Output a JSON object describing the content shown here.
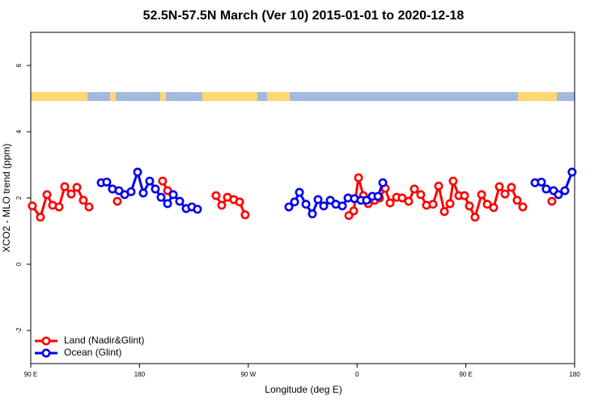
{
  "chart_data": {
    "type": "line",
    "title": "52.5N-57.5N March (Ver 10)   2015-01-01 to 2020-12-18",
    "x_label": "Longitude (deg E)",
    "y_label": "XCO2 - MLO trend (ppm)",
    "xlim": [
      90,
      540
    ],
    "ylim": [
      -3,
      7
    ],
    "xticks": [
      {
        "value": 90,
        "label": "90 E"
      },
      180,
      {
        "value": 270,
        "label": "90 W"
      },
      {
        "value": 360,
        "label": "0"
      },
      {
        "value": 450,
        "label": "90 E"
      },
      {
        "value": 540,
        "label": "180"
      }
    ],
    "yticks": [
      -2,
      0,
      2,
      4,
      6
    ],
    "legend": "bottom-left",
    "series": [
      {
        "name": "Land (Nadir&Glint)",
        "color": "#ff0000",
        "x": [
          91.3,
          98.0,
          103.4,
          108.1,
          113.4,
          118.1,
          123.5,
          128.2,
          133.5,
          138.2,
          null,
          161.6,
          null,
          199.1,
          203.2,
          null,
          243.3,
          248.0,
          252.7,
          258.0,
          262.8,
          267.4,
          null,
          353.2,
          357.2,
          361.2,
          365.2,
          369.2,
          374.6,
          378.6,
          383.3,
          387.3,
          392.7,
          397.3,
          402.7,
          407.4,
          412.7,
          417.4,
          422.8,
          427.5,
          432.2,
          436.9,
          439.5,
          444.2,
          448.9,
          452.9,
          457.6,
          463.0,
          467.7,
          473.0,
          477.7,
          482.4,
          487.7,
          492.4,
          497.1,
          null,
          521.2
        ],
        "values": [
          1.76,
          1.42,
          2.1,
          1.78,
          1.73,
          2.34,
          2.12,
          2.32,
          1.93,
          1.73,
          null,
          1.9,
          null,
          2.51,
          2.22,
          null,
          2.07,
          1.78,
          2.02,
          1.95,
          1.88,
          1.49,
          null,
          1.47,
          1.61,
          2.61,
          2.07,
          1.83,
          1.93,
          2.0,
          2.29,
          1.85,
          2.02,
          2.0,
          1.9,
          2.27,
          2.1,
          1.78,
          1.81,
          2.36,
          1.59,
          1.83,
          2.51,
          2.07,
          2.07,
          1.76,
          1.42,
          2.1,
          1.81,
          1.71,
          2.34,
          2.12,
          2.32,
          1.93,
          1.73,
          null,
          1.9
        ]
      },
      {
        "name": "Ocean (Glint)",
        "color": "#0000ee",
        "x": [
          148.3,
          152.9,
          157.6,
          163.0,
          167.7,
          173.0,
          178.4,
          183.1,
          188.4,
          193.1,
          197.8,
          203.2,
          207.9,
          213.2,
          218.6,
          223.3,
          227.9,
          null,
          303.6,
          308.3,
          312.3,
          317.7,
          323.0,
          327.7,
          332.4,
          337.8,
          342.4,
          347.8,
          352.5,
          357.8,
          363.2,
          367.9,
          372.6,
          377.3,
          381.3,
          null,
          507.2,
          512.5,
          516.5,
          522.6,
          526.6,
          531.9,
          537.9
        ],
        "values": [
          2.46,
          2.48,
          2.27,
          2.22,
          2.1,
          2.19,
          2.78,
          2.15,
          2.51,
          2.27,
          2.02,
          1.83,
          2.1,
          1.9,
          1.68,
          1.73,
          1.66,
          null,
          1.73,
          1.88,
          2.17,
          1.81,
          1.52,
          1.95,
          1.76,
          1.93,
          1.81,
          1.76,
          2.0,
          1.98,
          1.93,
          1.93,
          2.05,
          2.05,
          2.46,
          null,
          2.46,
          2.48,
          2.27,
          2.22,
          2.1,
          2.22,
          2.78
        ]
      }
    ]
  }
}
